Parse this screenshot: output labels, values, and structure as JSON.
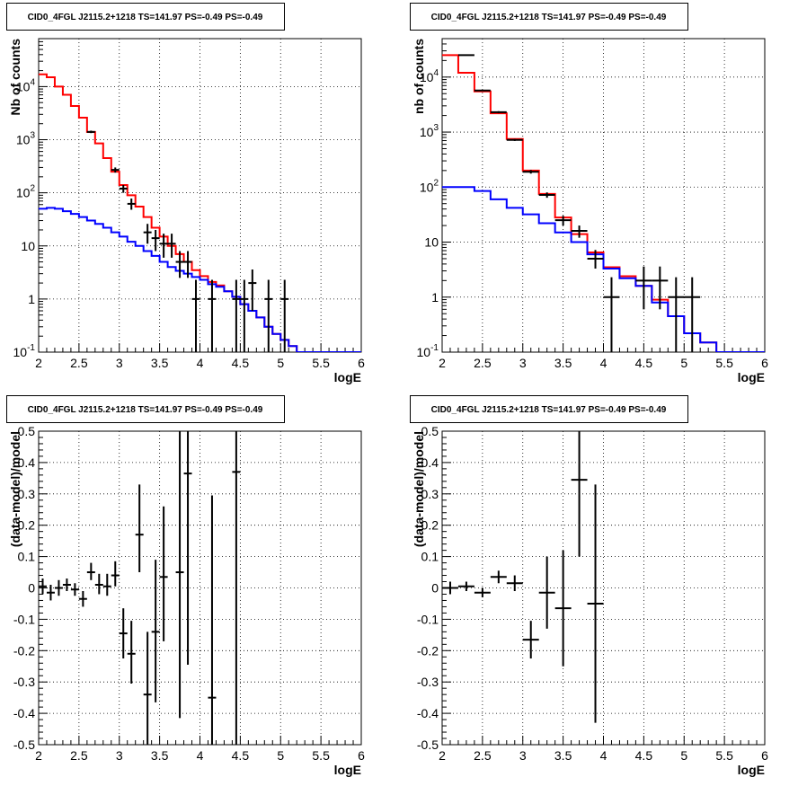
{
  "chart_data": [
    {
      "type": "line",
      "title": "CID0_4FGL J2115.2+1218 TS=141.97 PS=-0.49 PS=-0.49",
      "xlabel": "logE",
      "ylabel": "Nb of counts",
      "xlim": [
        2,
        6
      ],
      "ylim": [
        0.1,
        80000
      ],
      "log_y": true,
      "grid": true,
      "x_ticks": [
        "2",
        "2.5",
        "3",
        "3.5",
        "4",
        "4.5",
        "5",
        "5.5",
        "6"
      ],
      "y_ticks": [
        {
          "v": 0.1,
          "label": "10",
          "sup": "-1"
        },
        {
          "v": 1,
          "label": "1",
          "sup": ""
        },
        {
          "v": 10,
          "label": "10",
          "sup": ""
        },
        {
          "v": 100,
          "label": "10",
          "sup": "2"
        },
        {
          "v": 1000,
          "label": "10",
          "sup": "3"
        },
        {
          "v": 10000,
          "label": "10",
          "sup": "4"
        }
      ],
      "bin_width": 0.1,
      "series": [
        {
          "kind": "step",
          "color": "#ff0000",
          "edges": [
            2.0,
            2.1,
            2.2,
            2.3,
            2.4,
            2.5,
            2.6,
            2.7,
            2.8,
            2.9,
            3.0,
            3.1,
            3.2,
            3.3,
            3.4,
            3.5,
            3.6,
            3.7,
            3.8,
            3.9,
            4.0,
            4.1,
            4.2,
            4.3,
            4.4,
            4.5,
            4.6,
            4.7,
            4.8,
            4.9,
            5.0,
            5.1,
            5.2,
            5.3,
            5.4,
            5.5,
            5.6,
            5.7,
            5.8,
            5.9,
            6.0
          ],
          "values": [
            17000,
            15000,
            10000,
            7000,
            4300,
            2600,
            1400,
            850,
            450,
            250,
            140,
            90,
            55,
            35,
            22,
            15,
            10,
            7,
            5,
            3.5,
            2.7,
            2.1,
            1.8,
            1.4,
            1.1,
            0.8,
            0.6,
            0.45,
            0.3,
            0.22,
            0.17,
            0.13,
            0.1,
            0.1,
            0.1,
            0.1,
            0.1,
            0.1,
            0.1,
            0.1
          ]
        },
        {
          "kind": "step",
          "color": "#0000ff",
          "edges": [
            2.0,
            2.1,
            2.2,
            2.3,
            2.4,
            2.5,
            2.6,
            2.7,
            2.8,
            2.9,
            3.0,
            3.1,
            3.2,
            3.3,
            3.4,
            3.5,
            3.6,
            3.7,
            3.8,
            3.9,
            4.0,
            4.1,
            4.2,
            4.3,
            4.4,
            4.5,
            4.6,
            4.7,
            4.8,
            4.9,
            5.0,
            5.1,
            5.2,
            5.3,
            5.4,
            5.5,
            5.6,
            5.7,
            5.8,
            5.9,
            6.0
          ],
          "values": [
            50,
            52,
            50,
            45,
            40,
            35,
            30,
            26,
            22,
            18,
            15,
            12,
            10,
            8,
            6.5,
            5,
            4,
            3.4,
            3,
            2.6,
            2.3,
            1.9,
            1.7,
            1.4,
            1.1,
            0.8,
            0.6,
            0.45,
            0.3,
            0.22,
            0.17,
            0.13,
            0.1,
            0.1,
            0.1,
            0.1,
            0.1,
            0.1,
            0.1,
            0.1
          ]
        },
        {
          "kind": "points",
          "color": "#000000",
          "x": [
            2.65,
            2.95,
            3.05,
            3.15,
            3.35,
            3.45,
            3.55,
            3.65,
            3.75,
            3.85,
            3.95,
            4.15,
            4.45,
            4.55,
            4.65,
            4.85,
            5.05
          ],
          "y": [
            1400,
            270,
            120,
            62,
            18,
            14,
            11,
            11,
            5,
            5,
            1,
            1,
            1,
            1,
            2,
            1,
            1
          ],
          "ylow": [
            1330,
            240,
            100,
            48,
            11,
            8,
            6,
            6,
            2.5,
            2.5,
            0.1,
            0.1,
            0.1,
            0.1,
            0.6,
            0.1,
            0.1
          ],
          "yhigh": [
            1480,
            300,
            140,
            78,
            26,
            20,
            17,
            17,
            8,
            8,
            2.3,
            2.3,
            2.3,
            2.3,
            3.6,
            2.3,
            2.3
          ]
        }
      ]
    },
    {
      "type": "line",
      "title": "CID0_4FGL J2115.2+1218 TS=141.97 PS=-0.49 PS=-0.49",
      "xlabel": "logE",
      "ylabel": "nb of counts",
      "xlim": [
        2,
        6
      ],
      "ylim": [
        0.1,
        50000
      ],
      "log_y": true,
      "grid": true,
      "x_ticks": [
        "2",
        "2.5",
        "3",
        "3.5",
        "4",
        "4.5",
        "5",
        "5.5",
        "6"
      ],
      "y_ticks": [
        {
          "v": 0.1,
          "label": "10",
          "sup": "-1"
        },
        {
          "v": 1,
          "label": "1",
          "sup": ""
        },
        {
          "v": 10,
          "label": "10",
          "sup": ""
        },
        {
          "v": 100,
          "label": "10",
          "sup": "2"
        },
        {
          "v": 1000,
          "label": "10",
          "sup": "3"
        },
        {
          "v": 10000,
          "label": "10",
          "sup": "4"
        }
      ],
      "bin_width": 0.2,
      "series": [
        {
          "kind": "step",
          "color": "#ff0000",
          "edges": [
            2.0,
            2.2,
            2.4,
            2.6,
            2.8,
            3.0,
            3.2,
            3.4,
            3.6,
            3.8,
            4.0,
            4.2,
            4.4,
            4.6,
            4.8,
            5.0,
            5.2,
            5.4,
            5.6,
            5.8,
            6.0
          ],
          "values": [
            25000,
            12000,
            5500,
            2200,
            750,
            200,
            75,
            28,
            14,
            6.5,
            3.5,
            2.4,
            1.6,
            0.9,
            0.45,
            0.22,
            0.15,
            0.1,
            0.1,
            0.1
          ]
        },
        {
          "kind": "step",
          "color": "#0000ff",
          "edges": [
            2.0,
            2.2,
            2.4,
            2.6,
            2.8,
            3.0,
            3.2,
            3.4,
            3.6,
            3.8,
            4.0,
            4.2,
            4.4,
            4.6,
            4.8,
            5.0,
            5.2,
            5.4,
            5.6,
            5.8,
            6.0
          ],
          "values": [
            100,
            100,
            85,
            60,
            42,
            32,
            22,
            15,
            10,
            6,
            3.3,
            2.2,
            1.6,
            0.8,
            0.45,
            0.22,
            0.15,
            0.1,
            0.1,
            0.1
          ]
        },
        {
          "kind": "points",
          "color": "#000000",
          "x": [
            2.3,
            2.5,
            2.7,
            2.9,
            3.1,
            3.3,
            3.5,
            3.7,
            3.9,
            4.1,
            4.5,
            4.7,
            4.9,
            5.1
          ],
          "y": [
            25000,
            5700,
            2300,
            720,
            190,
            72,
            25,
            16,
            5,
            1,
            2,
            2,
            1,
            1
          ],
          "ylow": [
            24500,
            5550,
            2200,
            690,
            176,
            64,
            20,
            12,
            3.3,
            0.1,
            0.6,
            0.6,
            0.1,
            0.1
          ],
          "yhigh": [
            25500,
            5850,
            2400,
            750,
            204,
            80,
            30,
            20,
            7.2,
            2.3,
            3.6,
            3.6,
            2.3,
            2.3
          ]
        }
      ]
    },
    {
      "type": "scatter",
      "title": "CID0_4FGL J2115.2+1218 TS=141.97 PS=-0.49 PS=-0.49",
      "xlabel": "logE",
      "ylabel": "(data-model)/model",
      "xlim": [
        2,
        6
      ],
      "ylim": [
        -0.5,
        0.5
      ],
      "log_y": false,
      "grid": true,
      "x_ticks": [
        "2",
        "2.5",
        "3",
        "3.5",
        "4",
        "4.5",
        "5",
        "5.5",
        "6"
      ],
      "y_ticks": [
        {
          "v": -0.5,
          "label": "-0.5"
        },
        {
          "v": -0.4,
          "label": "-0.4"
        },
        {
          "v": -0.3,
          "label": "-0.3"
        },
        {
          "v": -0.2,
          "label": "-0.2"
        },
        {
          "v": -0.1,
          "label": "-0.1"
        },
        {
          "v": 0,
          "label": "0"
        },
        {
          "v": 0.1,
          "label": "0.1"
        },
        {
          "v": 0.2,
          "label": "0.2"
        },
        {
          "v": 0.3,
          "label": "0.3"
        },
        {
          "v": 0.4,
          "label": "0.4"
        },
        {
          "v": 0.5,
          "label": "0.5"
        }
      ],
      "bin_width": 0.1,
      "series": [
        {
          "kind": "points",
          "color": "#000000",
          "x": [
            2.05,
            2.15,
            2.25,
            2.35,
            2.45,
            2.55,
            2.65,
            2.75,
            2.85,
            2.95,
            3.05,
            3.15,
            3.25,
            3.35,
            3.45,
            3.55,
            3.75,
            3.85,
            4.15,
            4.45
          ],
          "y": [
            0.005,
            -0.015,
            0.0,
            0.01,
            -0.005,
            -0.035,
            0.05,
            0.01,
            0.005,
            0.04,
            -0.145,
            -0.21,
            0.17,
            -0.34,
            -0.14,
            0.035,
            0.05,
            0.365,
            -0.35,
            0.37
          ],
          "ylow": [
            -0.02,
            -0.04,
            -0.025,
            -0.01,
            -0.025,
            -0.06,
            0.025,
            -0.02,
            -0.025,
            0.005,
            -0.225,
            -0.305,
            0.05,
            -0.52,
            -0.365,
            -0.17,
            -0.415,
            -0.245,
            -0.52,
            -0.52
          ],
          "yhigh": [
            0.03,
            0.01,
            0.025,
            0.03,
            0.015,
            -0.01,
            0.08,
            0.045,
            0.045,
            0.085,
            -0.065,
            -0.105,
            0.33,
            -0.14,
            0.09,
            0.26,
            0.52,
            0.52,
            0.295,
            0.52
          ]
        }
      ]
    },
    {
      "type": "scatter",
      "title": "CID0_4FGL J2115.2+1218 TS=141.97 PS=-0.49 PS=-0.49",
      "xlabel": "logE",
      "ylabel": "(data-model)/model",
      "xlim": [
        2,
        6
      ],
      "ylim": [
        -0.5,
        0.5
      ],
      "log_y": false,
      "grid": true,
      "x_ticks": [
        "2",
        "2.5",
        "3",
        "3.5",
        "4",
        "4.5",
        "5",
        "5.5",
        "6"
      ],
      "y_ticks": [
        {
          "v": -0.5,
          "label": "-0.5"
        },
        {
          "v": -0.4,
          "label": "-0.4"
        },
        {
          "v": -0.3,
          "label": "-0.3"
        },
        {
          "v": -0.2,
          "label": "-0.2"
        },
        {
          "v": -0.1,
          "label": "-0.1"
        },
        {
          "v": 0,
          "label": "0"
        },
        {
          "v": 0.1,
          "label": "0.1"
        },
        {
          "v": 0.2,
          "label": "0.2"
        },
        {
          "v": 0.3,
          "label": "0.3"
        },
        {
          "v": 0.4,
          "label": "0.4"
        },
        {
          "v": 0.5,
          "label": "0.5"
        }
      ],
      "bin_width": 0.2,
      "series": [
        {
          "kind": "points",
          "color": "#000000",
          "x": [
            2.1,
            2.3,
            2.5,
            2.7,
            2.9,
            3.1,
            3.3,
            3.5,
            3.7,
            3.9
          ],
          "y": [
            0.0,
            0.005,
            -0.015,
            0.035,
            0.015,
            -0.165,
            -0.015,
            -0.065,
            0.345,
            -0.05
          ],
          "ylow": [
            -0.02,
            -0.01,
            -0.03,
            0.015,
            -0.01,
            -0.225,
            -0.13,
            -0.25,
            0.1,
            -0.43
          ],
          "yhigh": [
            0.02,
            0.02,
            0.0,
            0.055,
            0.04,
            -0.105,
            0.1,
            0.12,
            0.52,
            0.33
          ]
        }
      ]
    }
  ]
}
